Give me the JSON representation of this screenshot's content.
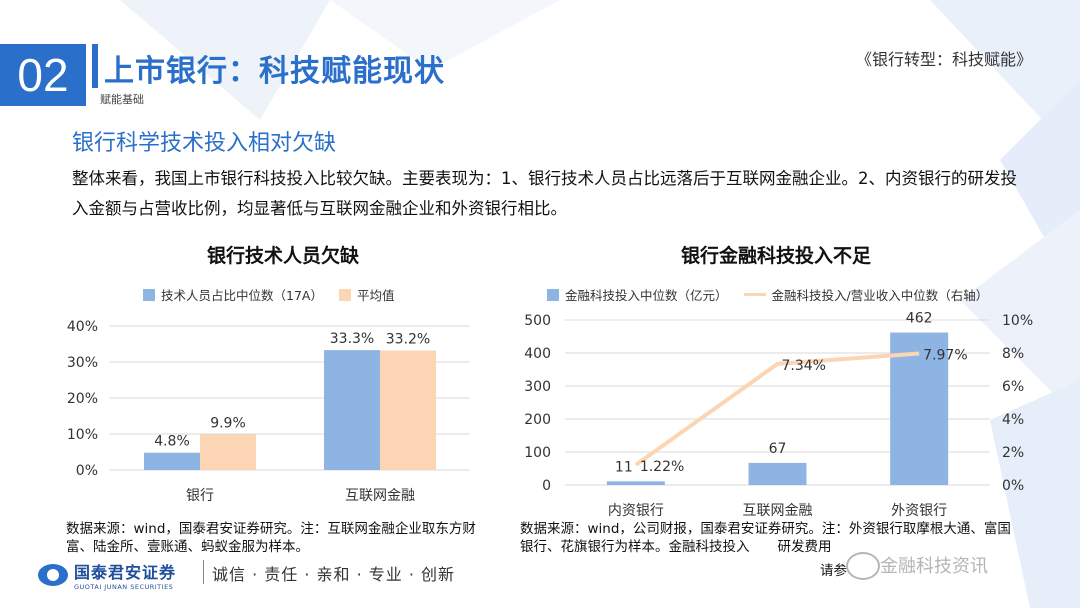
{
  "header": {
    "section_number": "02",
    "title": "上市银行：科技赋能现状",
    "sub_label": "赋能基础",
    "document_title": "《银行转型：科技赋能》"
  },
  "section_heading": "银行科学技术投入相对欠缺",
  "summary": "整体来看，我国上市银行科技投入比较欠缺。主要表现为：1、银行技术人员占比远落后于互联网金融企业。2、内资银行的研发投入金额与占营收比例，均显著低与互联网金融企业和外资银行相比。",
  "colors": {
    "accent": "#2a6fc9",
    "bar_blue": "#8eb4e3",
    "bar_peach": "#fcd5b4",
    "line_peach": "#fcd5b4"
  },
  "chart_data": [
    {
      "type": "bar",
      "title": "银行技术人员欠缺",
      "categories": [
        "银行",
        "互联网金融"
      ],
      "series": [
        {
          "name": "技术人员占比中位数（17A）",
          "values": [
            4.8,
            33.3
          ],
          "labels": [
            "4.8%",
            "33.3%"
          ]
        },
        {
          "name": "平均值",
          "values": [
            9.9,
            33.2
          ],
          "labels": [
            "9.9%",
            "33.2%"
          ]
        }
      ],
      "ylim": [
        0,
        40
      ],
      "yticks": [
        "0%",
        "10%",
        "20%",
        "30%",
        "40%"
      ],
      "grid": true,
      "legend": "top"
    },
    {
      "type": "bar",
      "title": "银行金融科技投入不足",
      "categories": [
        "内资银行",
        "互联网金融",
        "外资银行"
      ],
      "series": [
        {
          "name": "金融科技投入中位数（亿元）",
          "type": "bar",
          "axis": "left",
          "values": [
            11,
            67,
            462
          ],
          "labels": [
            "11",
            "67",
            "462"
          ]
        },
        {
          "name": "金融科技投入/营业收入中位数（右轴）",
          "type": "line",
          "axis": "right",
          "values": [
            1.22,
            7.34,
            7.97
          ],
          "labels": [
            "1.22%",
            "7.34%",
            "7.97%"
          ]
        }
      ],
      "ylim_left": [
        0,
        500
      ],
      "yticks_left": [
        "0",
        "100",
        "200",
        "300",
        "400",
        "500"
      ],
      "ylim_right": [
        0,
        10
      ],
      "yticks_right": [
        "0%",
        "2%",
        "4%",
        "6%",
        "8%",
        "10%"
      ],
      "grid": true,
      "legend": "top"
    }
  ],
  "sources": {
    "left": "数据来源：wind，国泰君安证券研究。注：互联网金融企业取东方财富、陆金所、壹账通、蚂蚁金服为样本。",
    "right": "数据来源：wind，公司财报，国泰君安证券研究。注：外资银行取摩根大通、富国银行、花旗银行为样本。金融科技投入",
    "right_tail": "研发费用",
    "disclaimer": "请参"
  },
  "footer": {
    "logo_cn": "国泰君安证券",
    "logo_en": "GUOTAI JUNAN SECURITIES",
    "slogan": "诚信 · 责任 · 亲和 · 专业 · 创新"
  },
  "watermark": "金融科技资讯"
}
